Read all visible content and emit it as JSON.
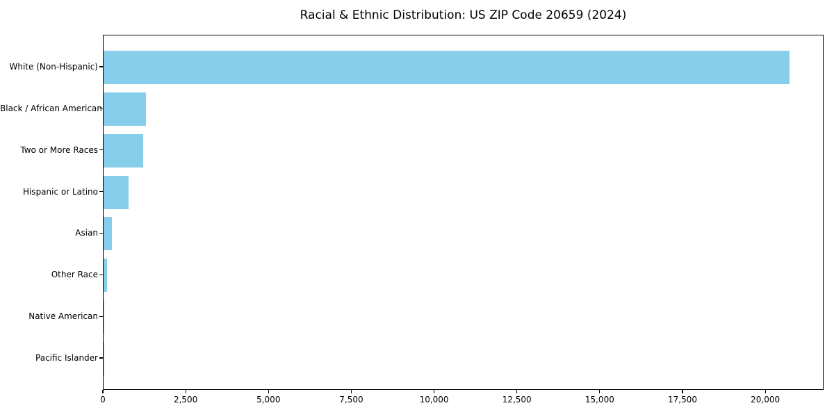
{
  "chart": {
    "title": "Racial & Ethnic Distribution: US ZIP Code 20659 (2024)"
  },
  "chart_data": {
    "type": "bar",
    "orientation": "horizontal",
    "title": "Racial & Ethnic Distribution: US ZIP Code 20659 (2024)",
    "xlabel": "",
    "ylabel": "",
    "categories": [
      "White (Non-Hispanic)",
      "Black / African American",
      "Two or More Races",
      "Hispanic or Latino",
      "Asian",
      "Other Race",
      "Native American",
      "Pacific Islander"
    ],
    "values": [
      20720,
      1280,
      1190,
      750,
      260,
      100,
      20,
      10
    ],
    "xlim": [
      0,
      21760
    ],
    "xticks": [
      0,
      2500,
      5000,
      7500,
      10000,
      12500,
      15000,
      17500,
      20000
    ],
    "xtick_labels": [
      "0",
      "2,500",
      "5,000",
      "7,500",
      "10,000",
      "12,500",
      "15,000",
      "17,500",
      "20,000"
    ],
    "grid": false,
    "legend": null,
    "colors": {
      "bar": "#87CEEB",
      "axis": "#000000",
      "text": "#000000",
      "background": "#ffffff"
    }
  }
}
